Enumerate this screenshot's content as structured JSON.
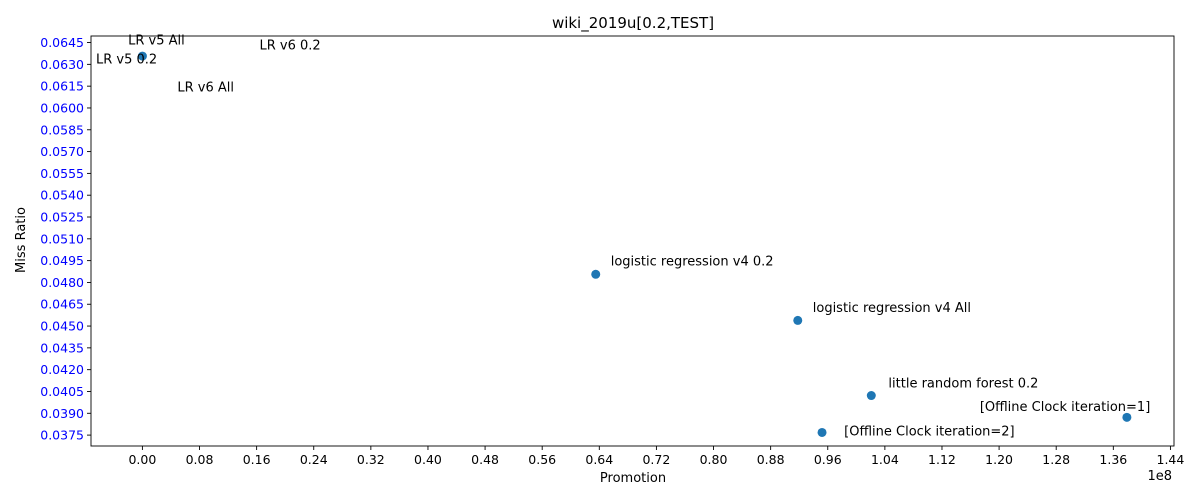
{
  "chart_data": {
    "type": "scatter",
    "title": "wiki_2019u[0.2,TEST]",
    "xlabel": "Promotion",
    "ylabel": "Miss Ratio",
    "x_offset_label": "1e8",
    "xlim": [
      -0.072,
      1.445
    ],
    "ylim": [
      0.03675,
      0.06495
    ],
    "x_ticks": [
      0.0,
      0.08,
      0.16,
      0.24,
      0.32,
      0.4,
      0.48,
      0.56,
      0.64,
      0.72,
      0.8,
      0.88,
      0.96,
      1.04,
      1.12,
      1.2,
      1.28,
      1.36,
      1.44
    ],
    "x_tick_labels": [
      "0.00",
      "0.08",
      "0.16",
      "0.24",
      "0.32",
      "0.40",
      "0.48",
      "0.56",
      "0.64",
      "0.72",
      "0.80",
      "0.88",
      "0.96",
      "1.04",
      "1.12",
      "1.20",
      "1.28",
      "1.36",
      "1.44"
    ],
    "y_ticks": [
      0.0375,
      0.039,
      0.0405,
      0.042,
      0.0435,
      0.045,
      0.0465,
      0.048,
      0.0495,
      0.051,
      0.0525,
      0.054,
      0.0555,
      0.057,
      0.0585,
      0.06,
      0.0615,
      0.063,
      0.0645
    ],
    "y_tick_labels": [
      "0.0375",
      "0.0390",
      "0.0405",
      "0.0420",
      "0.0435",
      "0.0450",
      "0.0465",
      "0.0480",
      "0.0495",
      "0.0510",
      "0.0525",
      "0.0540",
      "0.0555",
      "0.0570",
      "0.0585",
      "0.0600",
      "0.0615",
      "0.0630",
      "0.0645"
    ],
    "y_tick_color": "#0000ff",
    "point_color": "#1f77b4",
    "grid": false,
    "points": [
      {
        "x": 0.0,
        "y": 0.06357
      },
      {
        "x": 0.635,
        "y": 0.04856
      },
      {
        "x": 0.918,
        "y": 0.04539
      },
      {
        "x": 1.021,
        "y": 0.04022
      },
      {
        "x": 0.952,
        "y": 0.03768
      },
      {
        "x": 1.379,
        "y": 0.03872
      }
    ],
    "annotations": [
      {
        "text": "LR v5 All",
        "x": -0.02,
        "y": 0.06437
      },
      {
        "text": "LR v5 0.2",
        "x": -0.065,
        "y": 0.06305
      },
      {
        "text": "LR v6 0.2",
        "x": 0.164,
        "y": 0.06402
      },
      {
        "text": "LR v6 All",
        "x": 0.049,
        "y": 0.06112
      },
      {
        "text": "logistic regression v4 0.2",
        "x": 0.656,
        "y": 0.04916
      },
      {
        "text": "logistic regression v4 All",
        "x": 0.939,
        "y": 0.04595
      },
      {
        "text": "little random forest 0.2",
        "x": 1.045,
        "y": 0.04077
      },
      {
        "text": "[Offline Clock iteration=1]",
        "x": 1.173,
        "y": 0.03917
      },
      {
        "text": "[Offline Clock iteration=2]",
        "x": 0.983,
        "y": 0.03747
      }
    ]
  }
}
